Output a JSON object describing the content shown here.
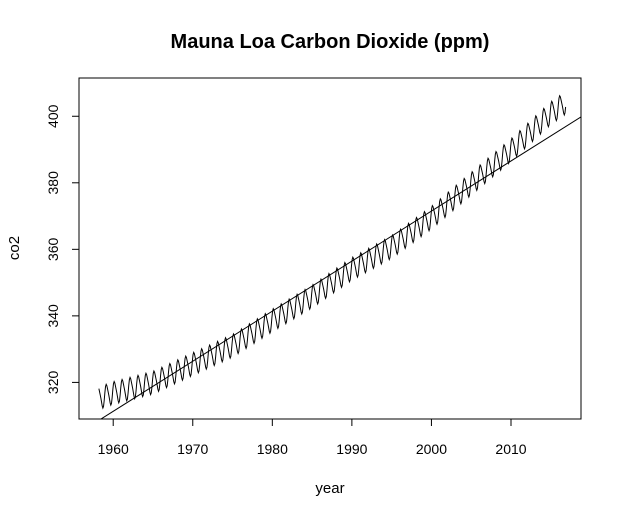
{
  "chart_data": {
    "type": "line",
    "title": "Mauna Loa Carbon Dioxide (ppm)",
    "xlabel": "year",
    "ylabel": "co2",
    "xlim": [
      1955.7,
      2018.8
    ],
    "ylim": [
      309,
      411.5
    ],
    "xticks": [
      1960,
      1970,
      1980,
      1990,
      2000,
      2010
    ],
    "yticks": [
      320,
      340,
      360,
      380,
      400
    ],
    "grid": false,
    "legend": "none",
    "colors": {
      "line": "#000000",
      "axis": "#000000",
      "background": "#ffffff"
    },
    "series": [
      {
        "kind": "monthly_seasonal",
        "start": 1958.2,
        "end": 2016.9,
        "step": 0.0833333,
        "trend_anchors": {
          "x": [
            1958.2,
            1960,
            1965,
            1970,
            1975,
            1980,
            1985,
            1990,
            1995,
            2000,
            2005,
            2010,
            2015,
            2016.9
          ],
          "y": [
            315.3,
            316.9,
            320.0,
            325.6,
            331.1,
            338.7,
            345.9,
            354.2,
            360.8,
            369.6,
            379.8,
            389.9,
            401.0,
            404.2
          ]
        },
        "seasonal_amplitude": 3.2
      },
      {
        "kind": "linear_fit",
        "x": [
          1958.2,
          2018.8
        ],
        "y": [
          308.6,
          399.8
        ]
      }
    ]
  }
}
